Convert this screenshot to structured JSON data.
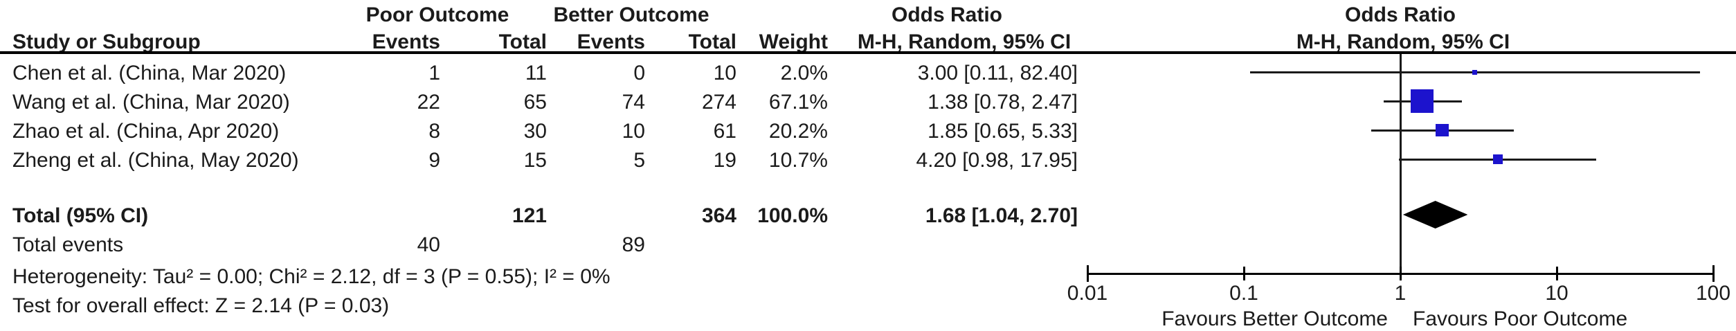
{
  "table": {
    "header": {
      "study": "Study or Subgroup",
      "group_poor": "Poor Outcome",
      "group_better": "Better Outcome",
      "events": "Events",
      "total": "Total",
      "weight": "Weight",
      "or_title": "Odds Ratio",
      "or_subtitle": "M-H, Random, 95% CI"
    },
    "rows": [
      {
        "study": "Chen et al. (China, Mar 2020)",
        "poor_events": "1",
        "poor_total": "11",
        "better_events": "0",
        "better_total": "10",
        "weight": "2.0%",
        "or_ci": "3.00 [0.11, 82.40]"
      },
      {
        "study": "Wang et al. (China, Mar 2020)",
        "poor_events": "22",
        "poor_total": "65",
        "better_events": "74",
        "better_total": "274",
        "weight": "67.1%",
        "or_ci": "1.38 [0.78, 2.47]"
      },
      {
        "study": "Zhao et al. (China, Apr 2020)",
        "poor_events": "8",
        "poor_total": "30",
        "better_events": "10",
        "better_total": "61",
        "weight": "20.2%",
        "or_ci": "1.85 [0.65, 5.33]"
      },
      {
        "study": "Zheng et al. (China, May 2020)",
        "poor_events": "9",
        "poor_total": "15",
        "better_events": "5",
        "better_total": "19",
        "weight": "10.7%",
        "or_ci": "4.20 [0.98, 17.95]"
      }
    ],
    "total_row": {
      "label": "Total (95% CI)",
      "poor_total": "121",
      "better_total": "364",
      "weight": "100.0%",
      "or_ci": "1.68 [1.04, 2.70]"
    },
    "total_events_row": {
      "label": "Total events",
      "poor_events": "40",
      "better_events": "89"
    },
    "heterogeneity": "Heterogeneity: Tau² = 0.00; Chi² = 2.12, df = 3 (P = 0.55); I² = 0%",
    "overall_effect": "Test for overall effect: Z = 2.14 (P = 0.03)"
  },
  "chart_data": {
    "type": "forest",
    "x_scale": "log",
    "xlim": [
      0.01,
      100
    ],
    "axis_ticks": [
      0.01,
      0.1,
      1,
      10,
      100
    ],
    "reference_line": 1,
    "studies": [
      {
        "name": "Chen et al. (China, Mar 2020)",
        "or": 3.0,
        "ci_low": 0.11,
        "ci_high": 82.4,
        "weight_pct": 2.0
      },
      {
        "name": "Wang et al. (China, Mar 2020)",
        "or": 1.38,
        "ci_low": 0.78,
        "ci_high": 2.47,
        "weight_pct": 67.1
      },
      {
        "name": "Zhao et al. (China, Apr 2020)",
        "or": 1.85,
        "ci_low": 0.65,
        "ci_high": 5.33,
        "weight_pct": 20.2
      },
      {
        "name": "Zheng et al. (China, May 2020)",
        "or": 4.2,
        "ci_low": 0.98,
        "ci_high": 17.95,
        "weight_pct": 10.7
      }
    ],
    "total": {
      "or": 1.68,
      "ci_low": 1.04,
      "ci_high": 2.7
    },
    "favours_left": "Favours Better Outcome",
    "favours_right": "Favours Poor Outcome",
    "marker_color": "#1c13cd",
    "diamond_color": "#000000",
    "line_color": "#1a1a1a"
  }
}
